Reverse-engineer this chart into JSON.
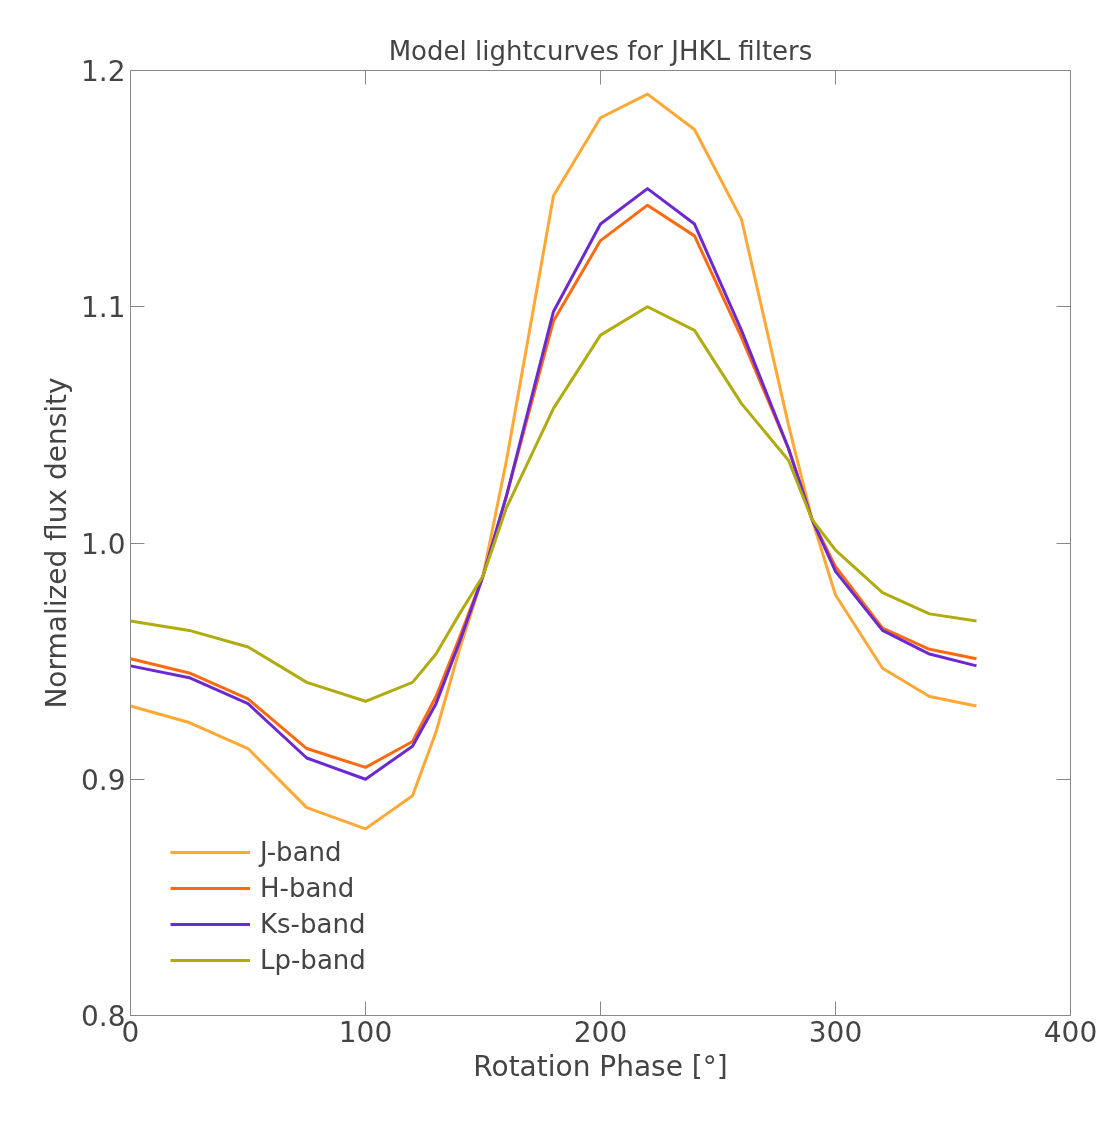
{
  "chart_data": {
    "type": "line",
    "title": "Model lightcurves for JHKL filters",
    "xlabel": "Rotation Phase [°]",
    "ylabel": "Normalized flux density",
    "x": [
      0,
      25,
      50,
      75,
      100,
      120,
      130,
      140,
      150,
      160,
      180,
      200,
      220,
      240,
      260,
      280,
      290,
      300,
      320,
      340,
      360
    ],
    "series": [
      {
        "name": "J-band",
        "color": "#ffa836",
        "values": [
          0.931,
          0.924,
          0.913,
          0.888,
          0.879,
          0.893,
          0.92,
          0.955,
          0.986,
          1.035,
          1.147,
          1.18,
          1.19,
          1.175,
          1.137,
          1.05,
          1.01,
          0.978,
          0.947,
          0.935,
          0.931
        ]
      },
      {
        "name": "H-band",
        "color": "#ff6a10",
        "values": [
          0.951,
          0.945,
          0.934,
          0.913,
          0.905,
          0.916,
          0.935,
          0.96,
          0.986,
          1.02,
          1.094,
          1.128,
          1.143,
          1.13,
          1.087,
          1.04,
          1.01,
          0.99,
          0.964,
          0.955,
          0.951
        ]
      },
      {
        "name": "Ks-band",
        "color": "#6a2ad0",
        "values": [
          0.948,
          0.943,
          0.932,
          0.909,
          0.9,
          0.914,
          0.932,
          0.958,
          0.986,
          1.02,
          1.098,
          1.135,
          1.15,
          1.135,
          1.09,
          1.04,
          1.01,
          0.988,
          0.963,
          0.953,
          0.948
        ]
      },
      {
        "name": "Lp-band",
        "color": "#b0ac10",
        "values": [
          0.967,
          0.963,
          0.956,
          0.941,
          0.933,
          0.941,
          0.953,
          0.97,
          0.986,
          1.015,
          1.057,
          1.088,
          1.1,
          1.09,
          1.059,
          1.035,
          1.01,
          0.997,
          0.979,
          0.97,
          0.967
        ]
      }
    ],
    "xlim": [
      0,
      400
    ],
    "ylim": [
      0.8,
      1.2
    ],
    "xticks": [
      0,
      100,
      200,
      300,
      400
    ],
    "yticks": [
      {
        "value": 0.8,
        "label": "0.8"
      },
      {
        "value": 0.9,
        "label": "0.9"
      },
      {
        "value": 1.0,
        "label": "1.0"
      },
      {
        "value": 1.1,
        "label": "1.1"
      },
      {
        "value": 1.2,
        "label": "1.2"
      }
    ],
    "grid": false,
    "legend": "bottom left",
    "marker": "none",
    "line_style": "solid"
  }
}
